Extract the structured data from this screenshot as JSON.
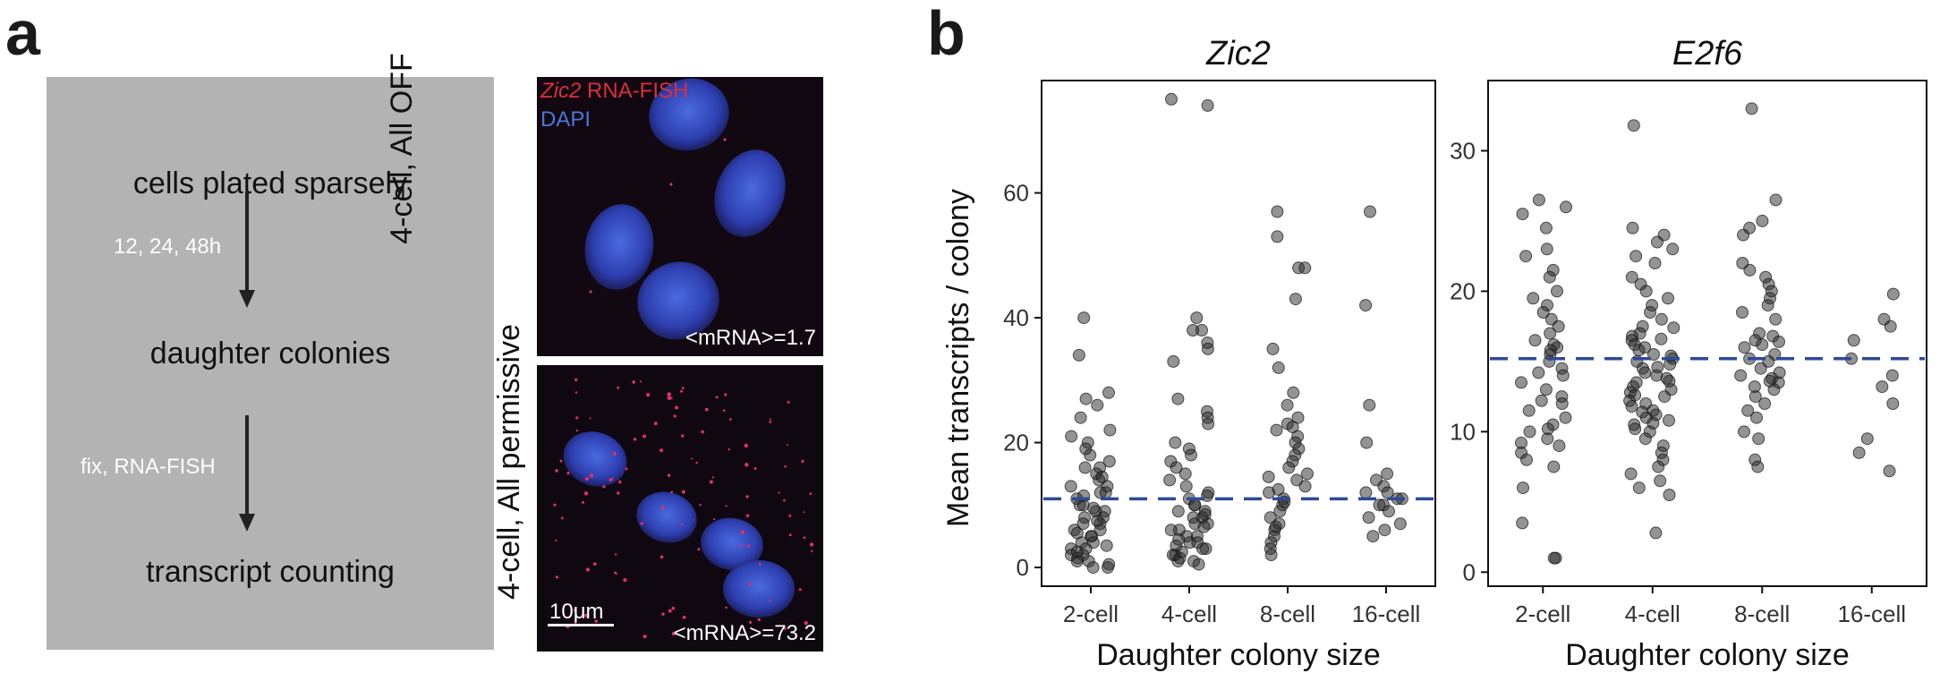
{
  "panel_a": {
    "letter": "a",
    "flow": {
      "step1": "cells plated sparsely",
      "arrow1_label": "12, 24, 48h",
      "step2": "daughter colonies",
      "arrow2_label": "fix, RNA-FISH",
      "step3": "transcript counting"
    },
    "image_top": {
      "side_label": "4-cell, All OFF",
      "legend_gene": "Zic2",
      "legend_gene_suffix": " RNA-FISH",
      "legend_dapi": "DAPI",
      "mrna_text": "<mRNA>=1.7"
    },
    "image_bottom": {
      "side_label": "4-cell, All permissive",
      "scale_bar": "10μm",
      "mrna_text": "<mRNA>=73.2"
    },
    "colors": {
      "box": "#b3b3b3",
      "fish_red": "#d9303a",
      "dapi_blue": "#3a63c8",
      "mean_line": "#2d4a9a"
    }
  },
  "panel_b": {
    "letter": "b",
    "ylabel": "Mean transcripts / colony"
  },
  "chart_data": [
    {
      "type": "scatter",
      "title": "Zic2",
      "xlabel": "Daughter colony size",
      "ylabel": "Mean transcripts / colony",
      "categories": [
        "2-cell",
        "4-cell",
        "8-cell",
        "16-cell"
      ],
      "ylim": [
        -3,
        78
      ],
      "yticks": [
        0,
        20,
        40,
        60
      ],
      "mean_line": 11,
      "points": {
        "2-cell": [
          40,
          34,
          28,
          27,
          26,
          24,
          22,
          20,
          19,
          18,
          17,
          16,
          16,
          15,
          14,
          13,
          13,
          12,
          12,
          11,
          10,
          10,
          9,
          9,
          8,
          8,
          7,
          7,
          6,
          6,
          5,
          5,
          4,
          4,
          3,
          3,
          2,
          2,
          1,
          1,
          0.5,
          0,
          0,
          1.5,
          2.5,
          3.5,
          5.5,
          7.5,
          9.5,
          11.5,
          14.5,
          21
        ],
        "4-cell": [
          75,
          74,
          40,
          38,
          38,
          36,
          35,
          33,
          27,
          25,
          24,
          23,
          20,
          19,
          18,
          17,
          16,
          15,
          14,
          13,
          12,
          11,
          10,
          10,
          9,
          9,
          8,
          8,
          7,
          7,
          6,
          6,
          5,
          5,
          4,
          4,
          3,
          3,
          2,
          2,
          1,
          1,
          0.5,
          1.5,
          2.5,
          3.5,
          4.5,
          6.5,
          8.5,
          11.5
        ],
        "8-cell": [
          57,
          53,
          48,
          48,
          43,
          35,
          32,
          28,
          26,
          24,
          23,
          22,
          21,
          20,
          19,
          18,
          17,
          16,
          15,
          14,
          13,
          12,
          11,
          10,
          9,
          8,
          7,
          6,
          5,
          4,
          3,
          2,
          6.5,
          10.5,
          12.5,
          14.5,
          22.5
        ],
        "16-cell": [
          57,
          42,
          26,
          20,
          15,
          14,
          13,
          12,
          12,
          11,
          11,
          10,
          10,
          9,
          8,
          7,
          6,
          5
        ]
      }
    },
    {
      "type": "scatter",
      "title": "E2f6",
      "xlabel": "Daughter colony size",
      "ylabel": "",
      "categories": [
        "2-cell",
        "4-cell",
        "8-cell",
        "16-cell"
      ],
      "ylim": [
        -1,
        35
      ],
      "yticks": [
        0,
        10,
        20,
        30
      ],
      "mean_line": 15.2,
      "points": {
        "2-cell": [
          26.5,
          26,
          25.5,
          24.5,
          23,
          22.5,
          21.5,
          21,
          20,
          19.5,
          19,
          18.5,
          18,
          17.5,
          17,
          16.5,
          16,
          15.5,
          15,
          14.5,
          14,
          13.5,
          13,
          12.5,
          12,
          11.5,
          11,
          10.5,
          10,
          9.5,
          9,
          8.5,
          8,
          7.5,
          6,
          3.5,
          1,
          1,
          16.2,
          14.2,
          12.2,
          10.2,
          9.2,
          15.8
        ],
        "4-cell": [
          31.8,
          24.5,
          24,
          23.5,
          23,
          22.5,
          22,
          21,
          20.5,
          20,
          19.5,
          19,
          18.5,
          18,
          17.5,
          17,
          16.8,
          16.5,
          16.2,
          16,
          15.8,
          15.5,
          15.2,
          15,
          14.8,
          14.5,
          14.2,
          14,
          13.8,
          13.5,
          13.2,
          13,
          12.8,
          12.5,
          12.2,
          12,
          11.8,
          11.5,
          11.2,
          11,
          10.8,
          10.5,
          10.2,
          10,
          9.5,
          9,
          8.5,
          8,
          7.5,
          7,
          6.5,
          6,
          5.5,
          2.8,
          15.4,
          14.6,
          13.6,
          12.6,
          16.6,
          17.4,
          11.4,
          10.6
        ],
        "8-cell": [
          33,
          26.5,
          25,
          24.5,
          24,
          22,
          21.5,
          21,
          20.5,
          20,
          19.5,
          19,
          18.5,
          18,
          17,
          16.8,
          16.5,
          16.2,
          16,
          15.5,
          15.2,
          15,
          14.5,
          14,
          13.8,
          13.5,
          13.2,
          13,
          12.5,
          12,
          11.5,
          11,
          10,
          9.5,
          8,
          7.5,
          14.2,
          13.6,
          16.4
        ],
        "16-cell": [
          19.8,
          18,
          17.5,
          16.5,
          15.2,
          14,
          13.2,
          12,
          9.5,
          8.5,
          7.2
        ]
      }
    }
  ]
}
